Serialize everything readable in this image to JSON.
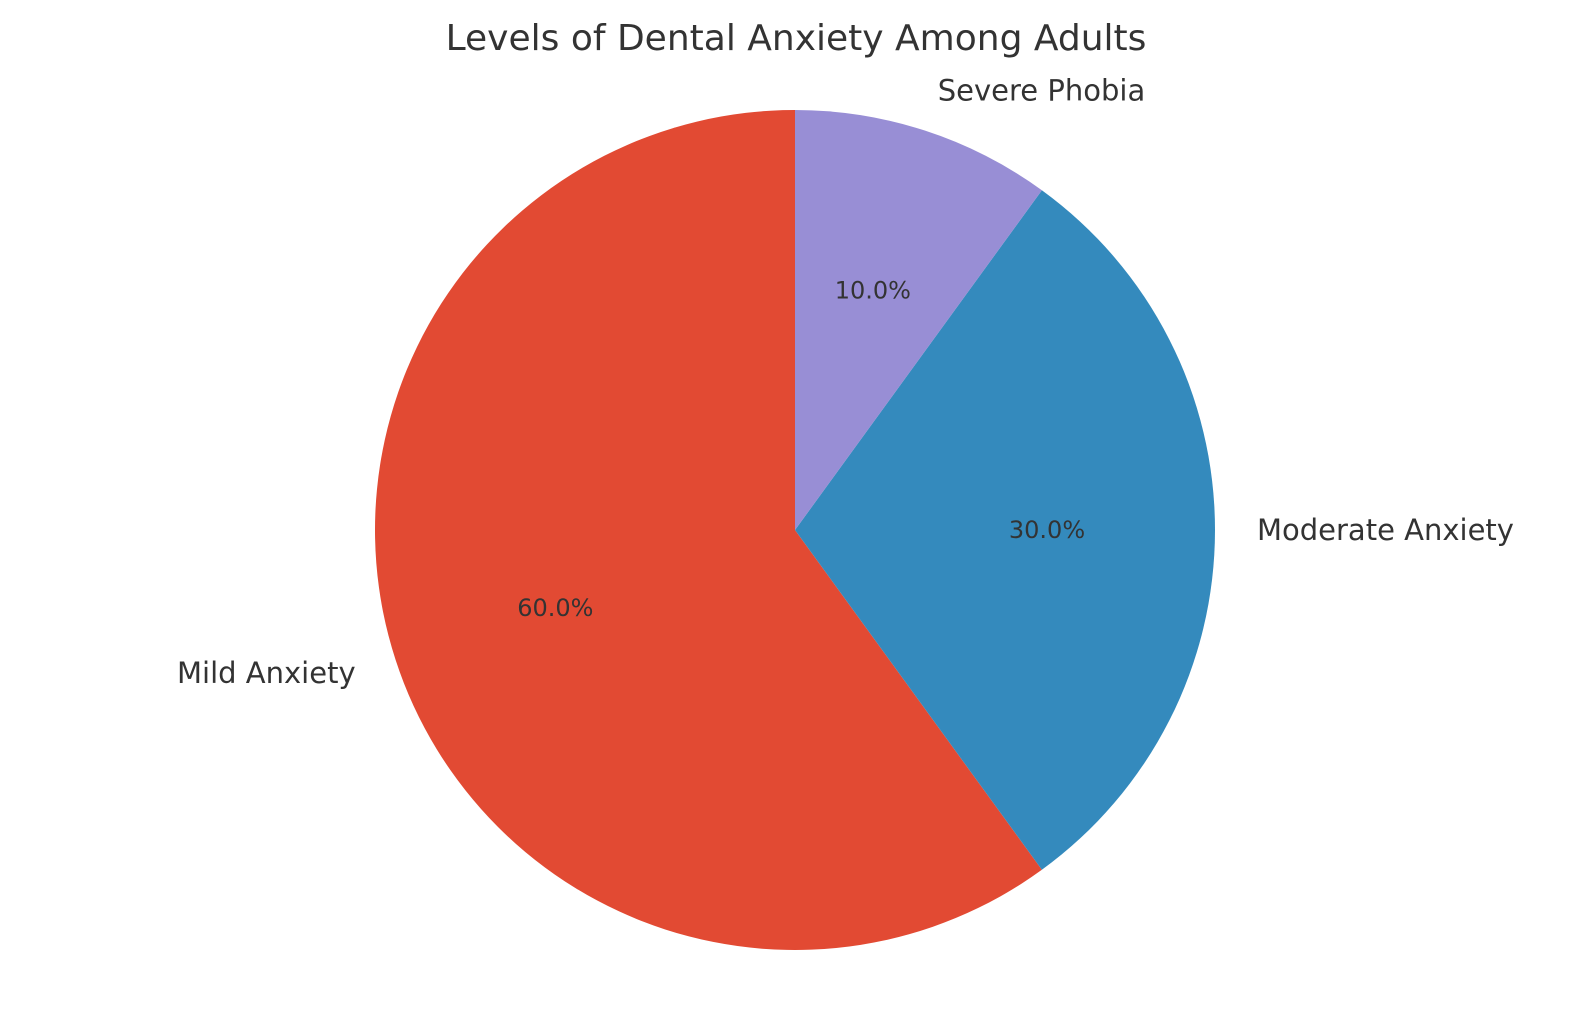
{
  "chart_data": {
    "type": "pie",
    "title": "Levels of Dental Anxiety Among Adults",
    "start_angle_deg": 90,
    "direction": "counterclockwise",
    "slices": [
      {
        "label": "Mild Anxiety",
        "value": 60,
        "pct_label": "60.0%",
        "color": "#E24A33"
      },
      {
        "label": "Moderate Anxiety",
        "value": 30,
        "pct_label": "30.0%",
        "color": "#348ABD"
      },
      {
        "label": "Severe Phobia",
        "value": 10,
        "pct_label": "10.0%",
        "color": "#988ED5"
      }
    ]
  }
}
